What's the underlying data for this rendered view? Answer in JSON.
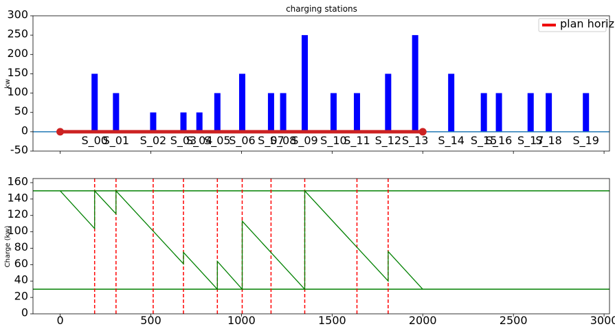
{
  "chart_data": [
    {
      "type": "bar",
      "title": "charging stations",
      "xlabel": "",
      "ylabel": "kw",
      "ylim": [
        -50,
        300
      ],
      "yticks": [
        -50,
        0,
        50,
        100,
        150,
        200,
        250,
        300
      ],
      "bar_color": "#0000ff",
      "baseline": {
        "y": 0,
        "color": "#1f77b4"
      },
      "stations": [
        {
          "name": "S_00",
          "x": 190,
          "power": 150
        },
        {
          "name": "S_01",
          "x": 308,
          "power": 100
        },
        {
          "name": "S_02",
          "x": 513,
          "power": 50
        },
        {
          "name": "S_03",
          "x": 680,
          "power": 50
        },
        {
          "name": "S_04",
          "x": 768,
          "power": 50
        },
        {
          "name": "S_05",
          "x": 867,
          "power": 100
        },
        {
          "name": "S_06",
          "x": 1004,
          "power": 150
        },
        {
          "name": "S_07",
          "x": 1163,
          "power": 100
        },
        {
          "name": "S_08",
          "x": 1230,
          "power": 100
        },
        {
          "name": "S_09",
          "x": 1349,
          "power": 250
        },
        {
          "name": "S_10",
          "x": 1508,
          "power": 100
        },
        {
          "name": "S_11",
          "x": 1637,
          "power": 100
        },
        {
          "name": "S_12",
          "x": 1809,
          "power": 150
        },
        {
          "name": "S_13",
          "x": 1958,
          "power": 250
        },
        {
          "name": "S_14",
          "x": 2157,
          "power": 150
        },
        {
          "name": "S_15",
          "x": 2337,
          "power": 100
        },
        {
          "name": "S_16",
          "x": 2420,
          "power": 100
        },
        {
          "name": "S_17",
          "x": 2595,
          "power": 100
        },
        {
          "name": "S_18",
          "x": 2695,
          "power": 100
        },
        {
          "name": "S_19",
          "x": 2900,
          "power": 100
        }
      ],
      "plan_horizon": {
        "label": "plan horizon",
        "x_start": 0,
        "x_end": 2000,
        "y": 0,
        "color": "#cc2222",
        "legend_color": "#ee0000"
      },
      "legend": {
        "entries": [
          "plan horizon"
        ],
        "position": "top-right"
      },
      "grid": false
    },
    {
      "type": "line",
      "title": "",
      "xlabel": "",
      "ylabel": "Charge (kw)",
      "xlim": [
        -150,
        3030
      ],
      "xticks": [
        0,
        500,
        1000,
        1500,
        2000,
        2500,
        3000
      ],
      "ylim": [
        0,
        165
      ],
      "yticks": [
        0,
        20,
        40,
        60,
        80,
        100,
        120,
        140,
        160
      ],
      "line_color": "#008000",
      "limits": {
        "max": 150,
        "min": 30
      },
      "charge_profile": [
        [
          0,
          150
        ],
        [
          190,
          104
        ],
        [
          190,
          150
        ],
        [
          308,
          122
        ],
        [
          308,
          150
        ],
        [
          680,
          61
        ],
        [
          680,
          75
        ],
        [
          867,
          30
        ],
        [
          867,
          64
        ],
        [
          1004,
          30
        ],
        [
          1004,
          113
        ],
        [
          1349,
          30
        ],
        [
          1349,
          150
        ],
        [
          1809,
          40
        ],
        [
          1809,
          76
        ],
        [
          2000,
          30
        ]
      ],
      "stop_markers": {
        "x": [
          190,
          308,
          513,
          680,
          867,
          1004,
          1163,
          1349,
          1637,
          1809
        ],
        "color": "#ff0000"
      },
      "grid": false
    }
  ]
}
